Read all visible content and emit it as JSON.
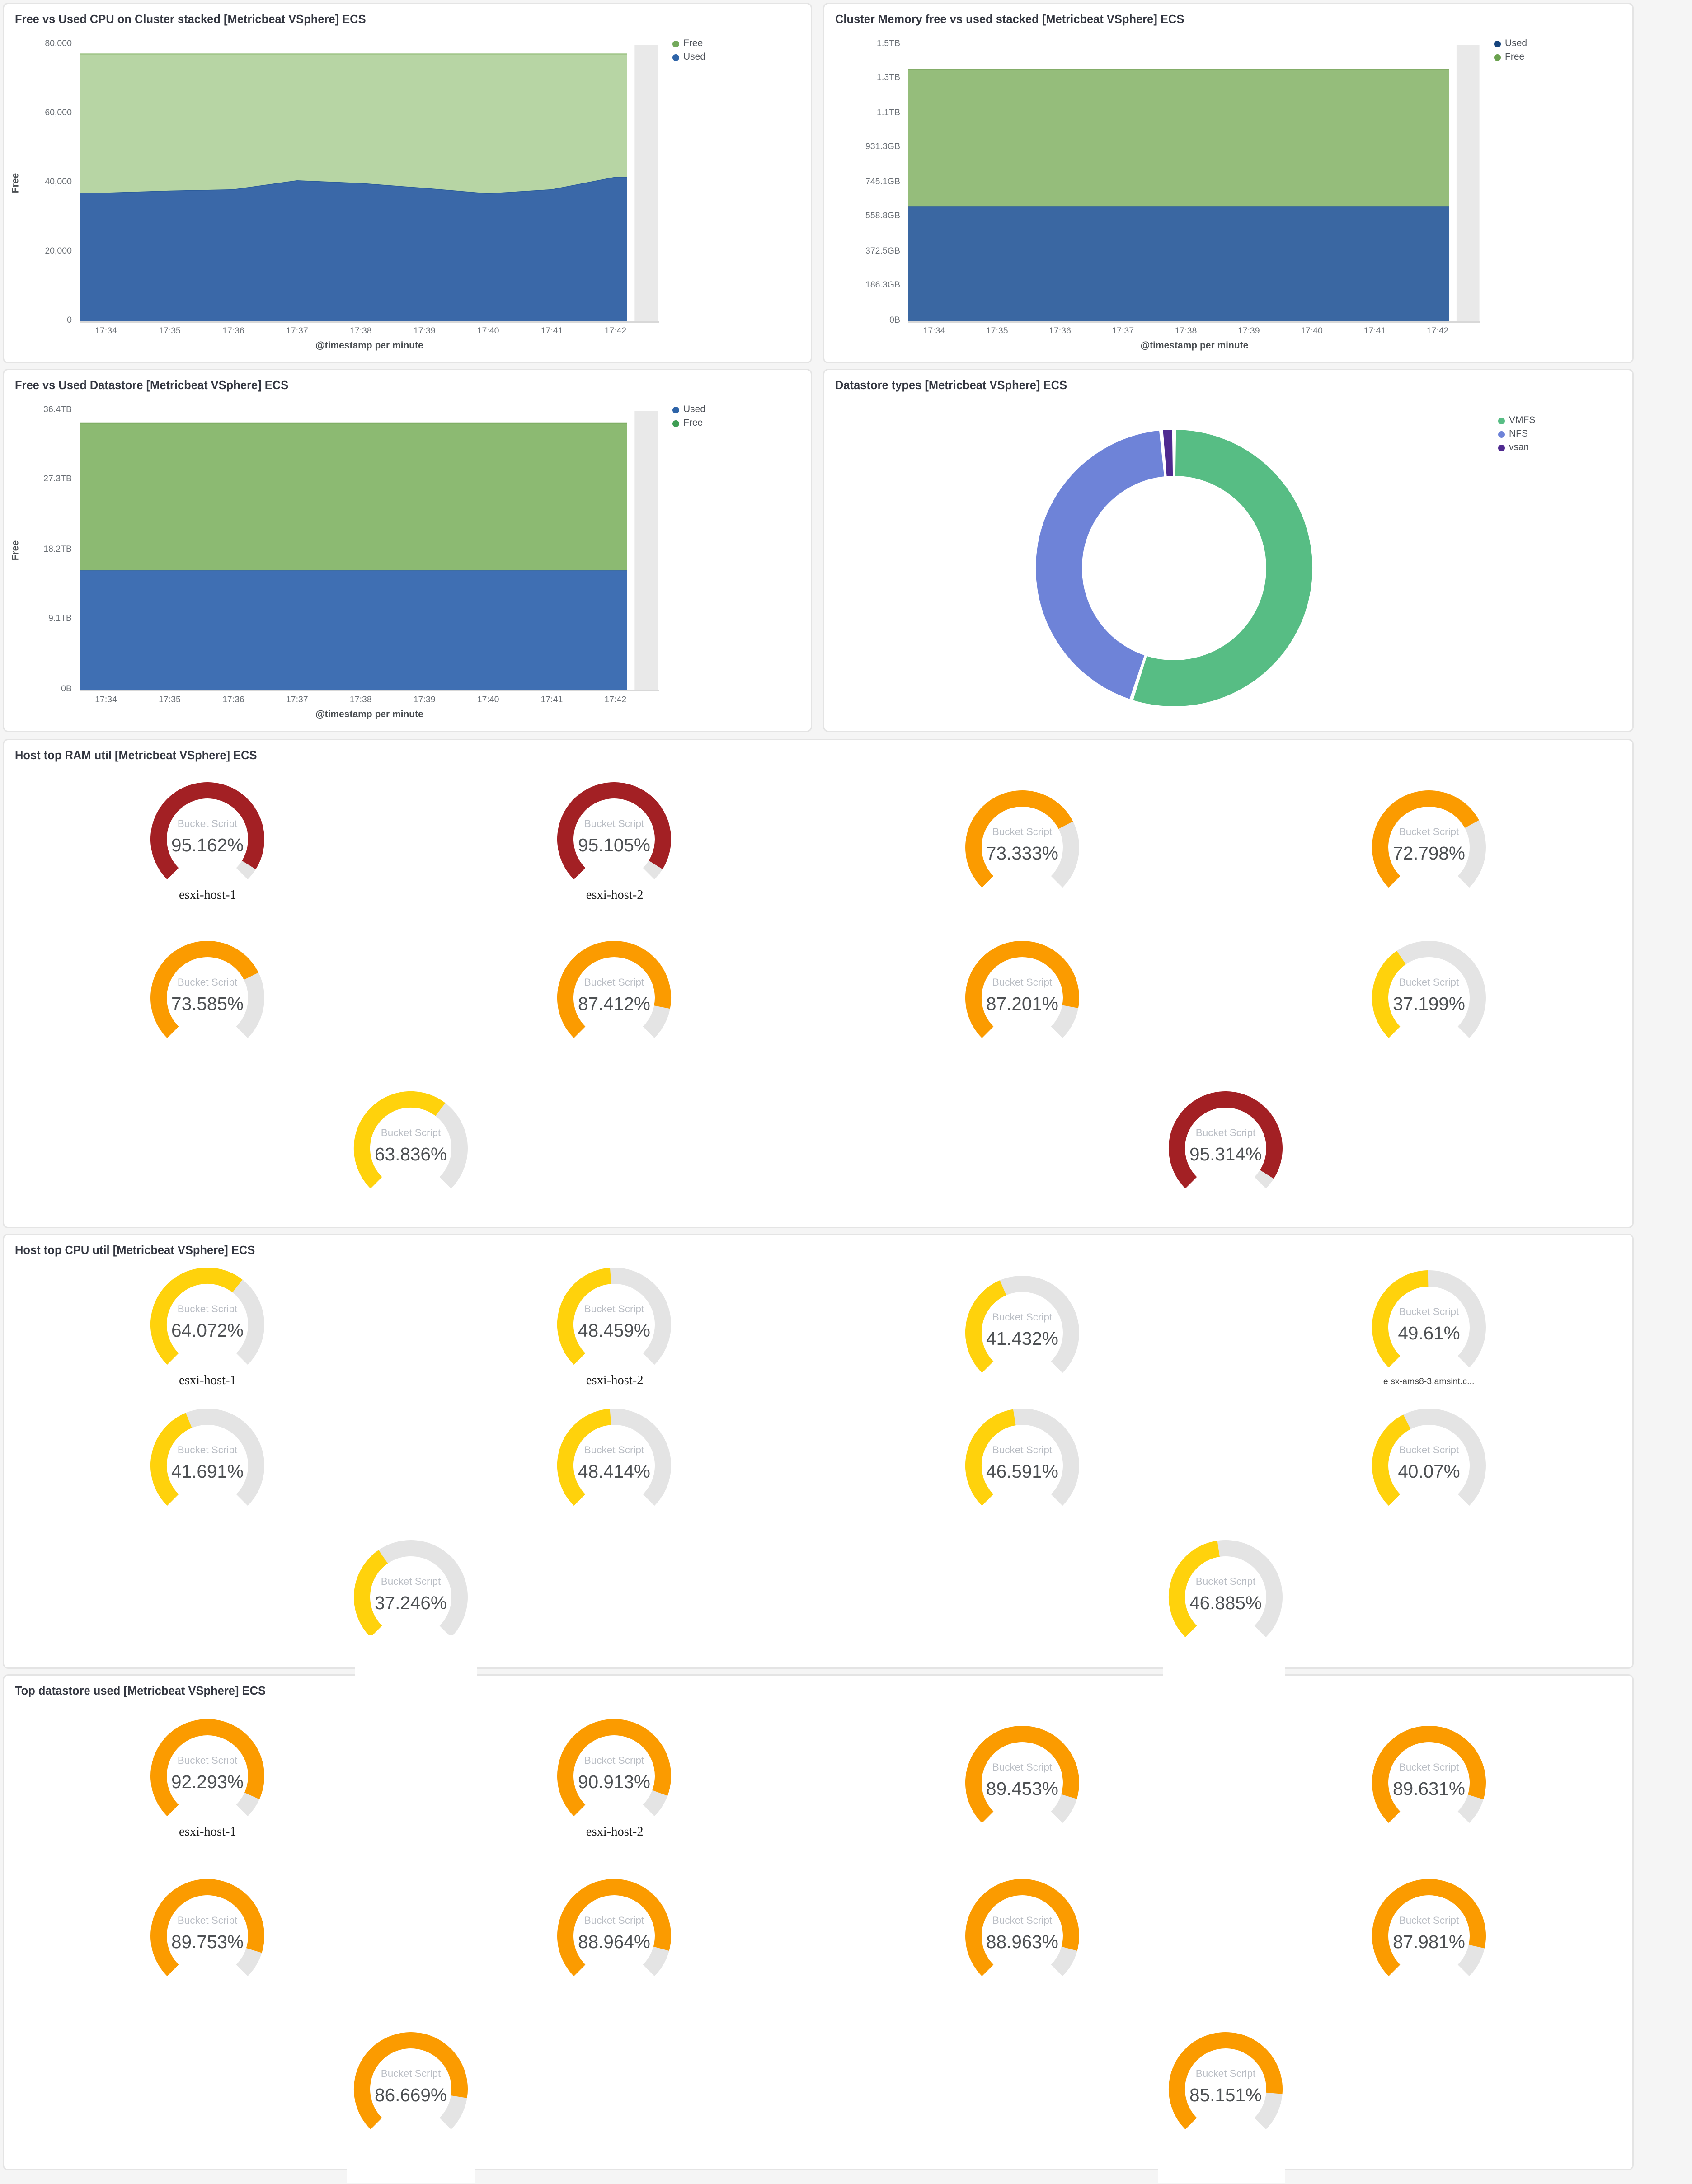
{
  "theme": {
    "page_bg": "#f5f5f5",
    "panel_border": "#e4e4e4",
    "panel_bg": "#ffffff"
  },
  "gauge_colors": {
    "red": "#a32024",
    "orange": "#fb9b00",
    "yellow": "#ffd20c",
    "track": "#e4e4e4"
  },
  "chart_data": [
    {
      "id": "cpu-cluster",
      "type": "area",
      "title": "Free vs Used CPU on Cluster stacked [Metricbeat VSphere] ECS",
      "ylabel": "Free",
      "xlabel": "@timestamp per minute",
      "ylim": [
        0,
        80000
      ],
      "grid": false,
      "legend_position": "right",
      "partial_bucket_color": "#e9e9e9",
      "yticks": [
        {
          "value": 0,
          "label": "0"
        },
        {
          "value": 20000,
          "label": "20,000"
        },
        {
          "value": 40000,
          "label": "40,000"
        },
        {
          "value": 60000,
          "label": "60,000"
        },
        {
          "value": 80000,
          "label": "80,000"
        }
      ],
      "x": [
        "17:34",
        "17:35",
        "17:36",
        "17:37",
        "17:38",
        "17:39",
        "17:40",
        "17:41",
        "17:42"
      ],
      "series": [
        {
          "name": "Used",
          "fill": "#3a68a8",
          "stroke": "#2c5c9b",
          "values": [
            37200,
            37800,
            38200,
            40800,
            40000,
            38600,
            37000,
            38200,
            41800
          ]
        },
        {
          "name": "Free",
          "fill": "#b7d5a4",
          "stroke": "#a3c78c",
          "values": [
            40100,
            39500,
            39100,
            36500,
            37300,
            38700,
            40300,
            39100,
            35500
          ]
        }
      ],
      "legend": [
        {
          "label": "Free",
          "color": "#73a95b"
        },
        {
          "label": "Used",
          "color": "#2e64a8"
        }
      ]
    },
    {
      "id": "memory-cluster",
      "type": "area",
      "title": "Cluster Memory free vs used stacked [Metricbeat VSphere] ECS",
      "ylabel": "",
      "xlabel": "@timestamp per minute",
      "ylim": [
        0,
        1.4902
      ],
      "grid": false,
      "legend_position": "right",
      "partial_bucket_color": "#e9e9e9",
      "yticks": [
        {
          "value": 0,
          "label": "0B"
        },
        {
          "value": 0.1863,
          "label": "186.3GB"
        },
        {
          "value": 0.3725,
          "label": "372.5GB"
        },
        {
          "value": 0.5588,
          "label": "558.8GB"
        },
        {
          "value": 0.7451,
          "label": "745.1GB"
        },
        {
          "value": 0.9313,
          "label": "931.3GB"
        },
        {
          "value": 1.1176,
          "label": "1.1TB"
        },
        {
          "value": 1.3039,
          "label": "1.3TB"
        },
        {
          "value": 1.4902,
          "label": "1.5TB"
        }
      ],
      "x": [
        "17:34",
        "17:35",
        "17:36",
        "17:37",
        "17:38",
        "17:39",
        "17:40",
        "17:41",
        "17:42"
      ],
      "series": [
        {
          "name": "Used",
          "fill": "#3a67a2",
          "stroke": "#2c5c9b",
          "values": [
            0.62,
            0.62,
            0.62,
            0.62,
            0.62,
            0.62,
            0.62,
            0.62,
            0.62
          ]
        },
        {
          "name": "Free",
          "fill": "#95bd7b",
          "stroke": "#84ad69",
          "values": [
            0.735,
            0.735,
            0.735,
            0.735,
            0.735,
            0.735,
            0.735,
            0.735,
            0.735
          ]
        }
      ],
      "legend": [
        {
          "label": "Used",
          "color": "#15437c"
        },
        {
          "label": "Free",
          "color": "#6ba24f"
        }
      ]
    },
    {
      "id": "datastore-free-used",
      "type": "area",
      "title": "Free vs Used Datastore [Metricbeat VSphere] ECS",
      "ylabel": "Free",
      "xlabel": "@timestamp per minute",
      "ylim": [
        0,
        36.4
      ],
      "grid": false,
      "legend_position": "right",
      "partial_bucket_color": "#e9e9e9",
      "yticks": [
        {
          "value": 0,
          "label": "0B"
        },
        {
          "value": 9.1,
          "label": "9.1TB"
        },
        {
          "value": 18.2,
          "label": "18.2TB"
        },
        {
          "value": 27.3,
          "label": "27.3TB"
        },
        {
          "value": 36.4,
          "label": "36.4TB"
        }
      ],
      "x": [
        "17:34",
        "17:35",
        "17:36",
        "17:37",
        "17:38",
        "17:39",
        "17:40",
        "17:41",
        "17:42"
      ],
      "series": [
        {
          "name": "Used",
          "fill": "#3f6fb3",
          "stroke": "#3363a8",
          "values": [
            15.6,
            15.6,
            15.6,
            15.6,
            15.6,
            15.6,
            15.6,
            15.6,
            15.6
          ]
        },
        {
          "name": "Free",
          "fill": "#8cba72",
          "stroke": "#7cab61",
          "values": [
            19.2,
            19.2,
            19.2,
            19.2,
            19.2,
            19.2,
            19.2,
            19.2,
            19.2
          ]
        }
      ],
      "legend": [
        {
          "label": "Used",
          "color": "#2e64a8"
        },
        {
          "label": "Free",
          "color": "#3f9e54"
        }
      ]
    },
    {
      "id": "datastore-types",
      "type": "pie",
      "title": "Datastore types [Metricbeat VSphere] ECS",
      "donut": true,
      "legend_position": "right",
      "slices": [
        {
          "label": "VMFS",
          "pct": 55,
          "color": "#57bd84"
        },
        {
          "label": "NFS",
          "pct": 43.5,
          "color": "#6e83d8"
        },
        {
          "label": "vsan",
          "pct": 1.5,
          "color": "#4f2a90"
        }
      ]
    },
    {
      "id": "ram-util",
      "type": "gauge",
      "title": "Host top RAM util [Metricbeat VSphere] ECS",
      "subtitle": "Bucket Script",
      "rows": [
        [
          {
            "value": 95.162,
            "display": "95.162%",
            "color": "red",
            "label": "esxi-host-1"
          },
          {
            "value": 95.105,
            "display": "95.105%",
            "color": "red",
            "label": "esxi-host-2"
          },
          {
            "value": 73.333,
            "display": "73.333%",
            "color": "orange"
          },
          {
            "value": 72.798,
            "display": "72.798%",
            "color": "orange"
          }
        ],
        [
          {
            "value": 73.585,
            "display": "73.585%",
            "color": "orange"
          },
          {
            "value": 87.412,
            "display": "87.412%",
            "color": "orange"
          },
          {
            "value": 87.201,
            "display": "87.201%",
            "color": "orange"
          },
          {
            "value": 37.199,
            "display": "37.199%",
            "color": "yellow"
          }
        ],
        [
          {
            "value": 63.836,
            "display": "63.836%",
            "color": "yellow"
          },
          {
            "value": 95.314,
            "display": "95.314%",
            "color": "red"
          }
        ]
      ]
    },
    {
      "id": "cpu-util",
      "type": "gauge",
      "title": "Host top CPU util [Metricbeat VSphere] ECS",
      "subtitle": "Bucket Script",
      "rows": [
        [
          {
            "value": 64.072,
            "display": "64.072%",
            "color": "yellow",
            "label": "esxi-host-1"
          },
          {
            "value": 48.459,
            "display": "48.459%",
            "color": "yellow",
            "label": "esxi-host-2"
          },
          {
            "value": 41.432,
            "display": "41.432%",
            "color": "yellow"
          },
          {
            "value": 49.61,
            "display": "49.61%",
            "color": "yellow",
            "label": "e sx-ams8-3.amsint.c...",
            "label_small": true
          }
        ],
        [
          {
            "value": 41.691,
            "display": "41.691%",
            "color": "yellow"
          },
          {
            "value": 48.414,
            "display": "48.414%",
            "color": "yellow"
          },
          {
            "value": 46.591,
            "display": "46.591%",
            "color": "yellow"
          },
          {
            "value": 40.07,
            "display": "40.07%",
            "color": "yellow"
          }
        ],
        [
          {
            "value": 37.246,
            "display": "37.246%",
            "color": "yellow"
          },
          {
            "value": 46.885,
            "display": "46.885%",
            "color": "yellow"
          }
        ]
      ]
    },
    {
      "id": "datastore-used",
      "type": "gauge",
      "title": "Top datastore used [Metricbeat VSphere] ECS",
      "subtitle": "Bucket Script",
      "rows": [
        [
          {
            "value": 92.293,
            "display": "92.293%",
            "color": "orange",
            "label": "esxi-host-1"
          },
          {
            "value": 90.913,
            "display": "90.913%",
            "color": "orange",
            "label": "esxi-host-2"
          },
          {
            "value": 89.453,
            "display": "89.453%",
            "color": "orange"
          },
          {
            "value": 89.631,
            "display": "89.631%",
            "color": "orange"
          }
        ],
        [
          {
            "value": 89.753,
            "display": "89.753%",
            "color": "orange"
          },
          {
            "value": 88.964,
            "display": "88.964%",
            "color": "orange"
          },
          {
            "value": 88.963,
            "display": "88.963%",
            "color": "orange"
          },
          {
            "value": 87.981,
            "display": "87.981%",
            "color": "orange"
          }
        ],
        [
          {
            "value": 86.669,
            "display": "86.669%",
            "color": "orange"
          },
          {
            "value": 85.151,
            "display": "85.151%",
            "color": "orange"
          }
        ]
      ]
    }
  ]
}
